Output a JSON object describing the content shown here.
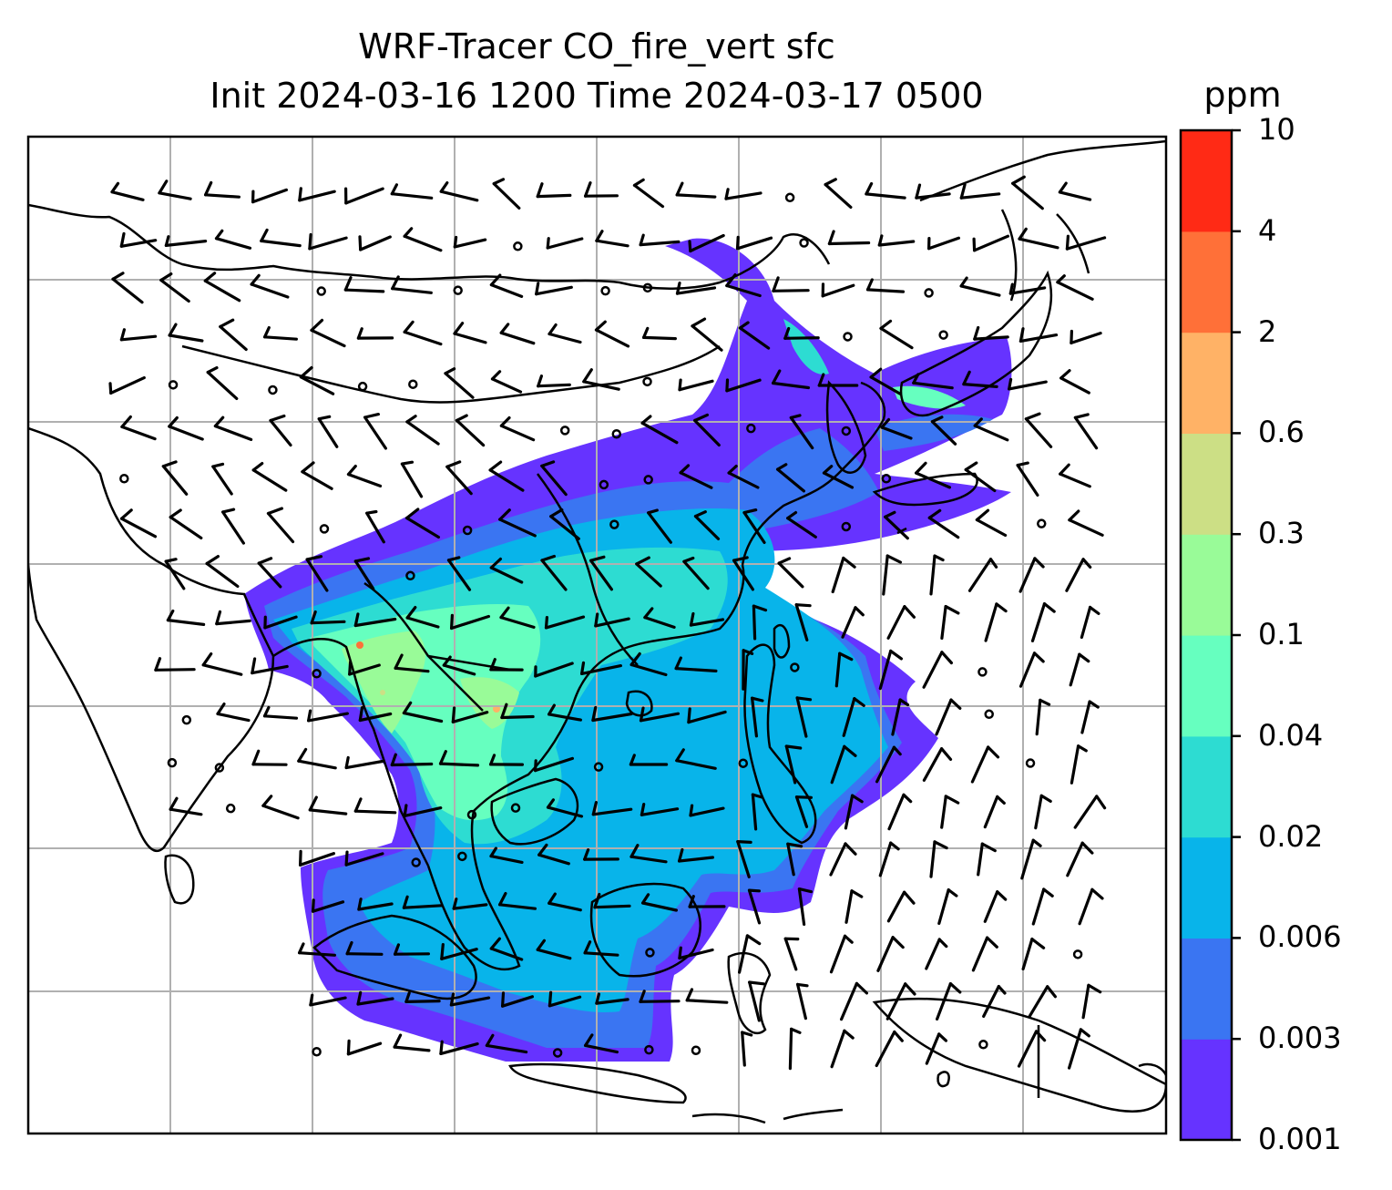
{
  "title": {
    "line1": "WRF-Tracer CO_fire_vert sfc",
    "line2": "Init 2024-03-16 1200 Time 2024-03-17 0500"
  },
  "colorbar": {
    "unit": "ppm",
    "levels": [
      "0.001",
      "0.003",
      "0.006",
      "0.02",
      "0.04",
      "0.1",
      "0.3",
      "0.6",
      "2",
      "4",
      "10"
    ],
    "colors": [
      "#6633ff",
      "#3a75f2",
      "#08b4ea",
      "#2ddcd2",
      "#66ffbf",
      "#99fb98",
      "#ccdf85",
      "#ffb266",
      "#ff7038",
      "#ff2a15"
    ]
  },
  "map": {
    "gridlines": true,
    "gridline_color": "#b0b0b0",
    "coastline_color": "#000000",
    "barb_color": "#000000"
  }
}
